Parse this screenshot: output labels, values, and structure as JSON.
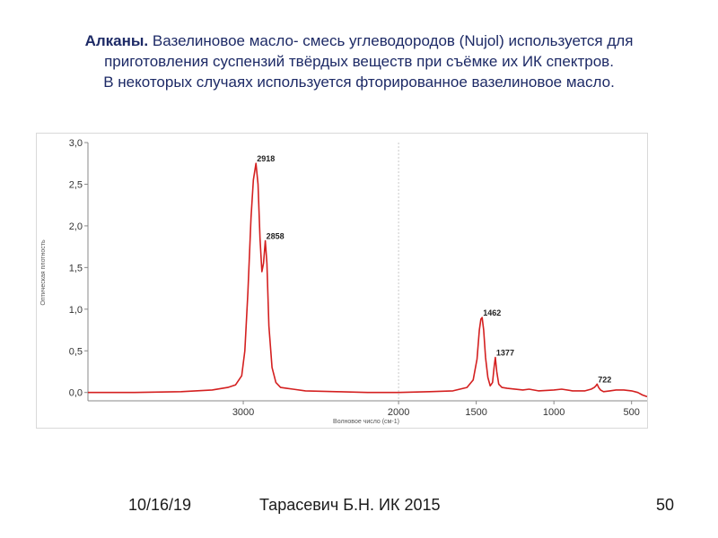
{
  "header": {
    "bold": "Алканы.",
    "line1": " Вазелиновое масло- смесь углеводородов (Nujol) используется для",
    "line2": "приготовления суспензий твёрдых веществ при съёмке их ИК  спектров.",
    "line3": "В некоторых случаях используется фторированное вазелиновое масло."
  },
  "chart_data": {
    "type": "line",
    "ylabel": "Оптическая плотность",
    "xlabel": "Волновое число (см-1)",
    "xlim": [
      4000,
      400
    ],
    "ylim": [
      -0.1,
      3.0
    ],
    "xticks": [
      {
        "value": 3000,
        "label": "3000"
      },
      {
        "value": 2000,
        "label": "2000"
      },
      {
        "value": 1500,
        "label": "1500"
      },
      {
        "value": 1000,
        "label": "1000"
      },
      {
        "value": 500,
        "label": "500"
      }
    ],
    "yticks": [
      {
        "value": 0.0,
        "label": "0,0"
      },
      {
        "value": 0.5,
        "label": "0,5"
      },
      {
        "value": 1.0,
        "label": "1,0"
      },
      {
        "value": 1.5,
        "label": "1,5"
      },
      {
        "value": 2.0,
        "label": "2,0"
      },
      {
        "value": 2.5,
        "label": "2,5"
      },
      {
        "value": 3.0,
        "label": "3,0"
      }
    ],
    "series": [
      {
        "color": "#d42020",
        "x": [
          4000,
          3700,
          3400,
          3200,
          3100,
          3050,
          3010,
          2990,
          2970,
          2950,
          2935,
          2918,
          2905,
          2892,
          2880,
          2870,
          2858,
          2848,
          2835,
          2815,
          2790,
          2760,
          2720,
          2680,
          2600,
          2400,
          2200,
          2000,
          1800,
          1650,
          1560,
          1520,
          1495,
          1480,
          1470,
          1462,
          1452,
          1440,
          1425,
          1410,
          1395,
          1385,
          1377,
          1368,
          1355,
          1335,
          1300,
          1200,
          1160,
          1100,
          1000,
          950,
          880,
          800,
          760,
          740,
          730,
          722,
          712,
          700,
          680,
          640,
          600,
          550,
          500,
          460,
          430,
          400
        ],
        "y": [
          0.0,
          0.0,
          0.01,
          0.03,
          0.06,
          0.09,
          0.2,
          0.5,
          1.2,
          2.1,
          2.55,
          2.75,
          2.5,
          1.85,
          1.45,
          1.55,
          1.82,
          1.55,
          0.8,
          0.3,
          0.12,
          0.06,
          0.05,
          0.04,
          0.02,
          0.01,
          0.0,
          0.0,
          0.01,
          0.02,
          0.06,
          0.15,
          0.4,
          0.75,
          0.88,
          0.9,
          0.75,
          0.42,
          0.18,
          0.08,
          0.12,
          0.3,
          0.42,
          0.25,
          0.1,
          0.06,
          0.05,
          0.03,
          0.04,
          0.02,
          0.03,
          0.04,
          0.02,
          0.02,
          0.04,
          0.06,
          0.08,
          0.1,
          0.06,
          0.03,
          0.01,
          0.02,
          0.03,
          0.03,
          0.02,
          0.0,
          -0.03,
          -0.05
        ]
      }
    ],
    "annotations": [
      {
        "x": 2918,
        "y": 2.75,
        "label": "2918"
      },
      {
        "x": 2858,
        "y": 1.82,
        "label": "2858"
      },
      {
        "x": 1462,
        "y": 0.9,
        "label": "1462"
      },
      {
        "x": 1377,
        "y": 0.42,
        "label": "1377"
      },
      {
        "x": 722,
        "y": 0.1,
        "label": "722"
      }
    ],
    "marker_x": 2000
  },
  "footer": {
    "date": "10/16/19",
    "author": "Тарасевич Б.Н.  ИК 2015",
    "page": "50"
  }
}
